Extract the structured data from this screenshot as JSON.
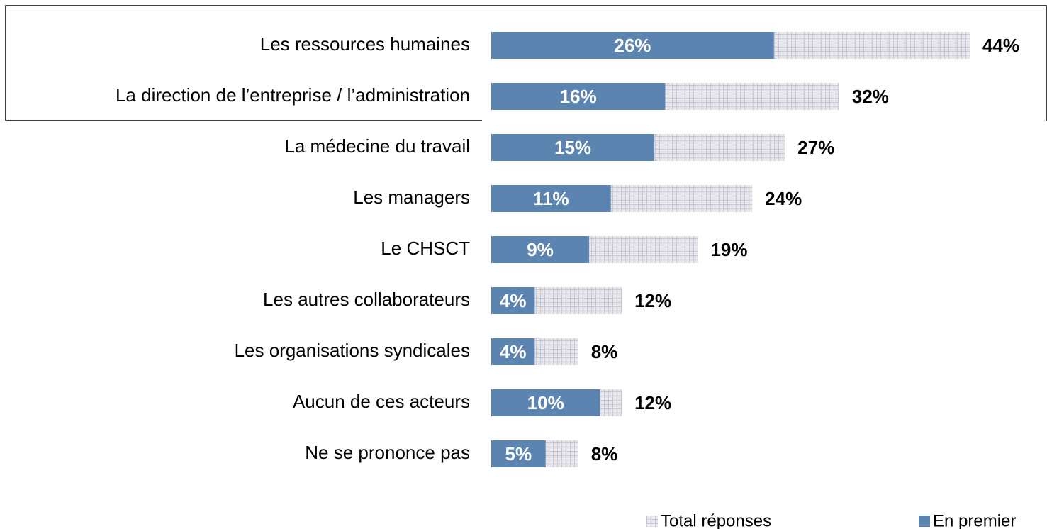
{
  "chart_data": {
    "type": "bar",
    "orientation": "horizontal",
    "overlap": true,
    "categories": [
      "Les ressources humaines",
      "La direction de l’entreprise / l’administration",
      "La médecine du travail",
      "Les managers",
      "Le CHSCT",
      "Les autres collaborateurs",
      "Les organisations syndicales",
      "Aucun de ces acteurs",
      "Ne se prononce pas"
    ],
    "series": [
      {
        "name": "Total réponses",
        "color": "#e4e4ea",
        "values": [
          44,
          32,
          27,
          24,
          19,
          12,
          8,
          12,
          8
        ],
        "value_labels": [
          "44%",
          "32%",
          "27%",
          "24%",
          "19%",
          "12%",
          "8%",
          "12%",
          "8%"
        ]
      },
      {
        "name": "En premier",
        "color": "#5b84b1",
        "values": [
          26,
          16,
          15,
          11,
          9,
          4,
          4,
          10,
          5
        ],
        "value_labels": [
          "26%",
          "16%",
          "15%",
          "11%",
          "9%",
          "4%",
          "4%",
          "10%",
          "5%"
        ]
      }
    ],
    "xlim": [
      0,
      50
    ]
  }
}
